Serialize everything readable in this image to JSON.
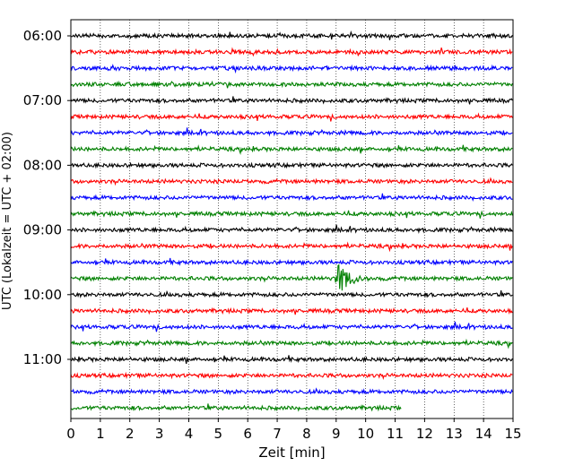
{
  "chart_data": {
    "type": "line",
    "title": "",
    "xlabel": "Zeit  [min]",
    "ylabel": "UTC (Lokalzeit = UTC + 02:00)",
    "xlim": [
      0,
      15
    ],
    "x_ticks": [
      "0",
      "1",
      "2",
      "3",
      "4",
      "5",
      "6",
      "7",
      "8",
      "9",
      "10",
      "11",
      "12",
      "13",
      "14",
      "15"
    ],
    "y_ticks": [
      "06:00",
      "07:00",
      "08:00",
      "09:00",
      "10:00",
      "11:00"
    ],
    "grid": "vertical dotted",
    "trace_interval_minutes": 15,
    "colors_cycle": [
      "#000000",
      "#ff0000",
      "#0000ff",
      "#008000"
    ],
    "series": [
      {
        "start": "06:00",
        "color": "#000000",
        "end_min": 15
      },
      {
        "start": "06:15",
        "color": "#ff0000",
        "end_min": 15
      },
      {
        "start": "06:30",
        "color": "#0000ff",
        "end_min": 15
      },
      {
        "start": "06:45",
        "color": "#008000",
        "end_min": 15
      },
      {
        "start": "07:00",
        "color": "#000000",
        "end_min": 15
      },
      {
        "start": "07:15",
        "color": "#ff0000",
        "end_min": 15
      },
      {
        "start": "07:30",
        "color": "#0000ff",
        "end_min": 15
      },
      {
        "start": "07:45",
        "color": "#008000",
        "end_min": 15
      },
      {
        "start": "08:00",
        "color": "#000000",
        "end_min": 15
      },
      {
        "start": "08:15",
        "color": "#ff0000",
        "end_min": 15
      },
      {
        "start": "08:30",
        "color": "#0000ff",
        "end_min": 15
      },
      {
        "start": "08:45",
        "color": "#008000",
        "end_min": 15
      },
      {
        "start": "09:00",
        "color": "#000000",
        "end_min": 15
      },
      {
        "start": "09:15",
        "color": "#ff0000",
        "end_min": 15
      },
      {
        "start": "09:30",
        "color": "#0000ff",
        "end_min": 15
      },
      {
        "start": "09:45",
        "color": "#008000",
        "end_min": 15,
        "event": {
          "onset_min": 8.95,
          "peak_min": 9.1,
          "decay_end_min": 10.5
        }
      },
      {
        "start": "10:00",
        "color": "#000000",
        "end_min": 15
      },
      {
        "start": "10:15",
        "color": "#ff0000",
        "end_min": 15
      },
      {
        "start": "10:30",
        "color": "#0000ff",
        "end_min": 15
      },
      {
        "start": "10:45",
        "color": "#008000",
        "end_min": 15
      },
      {
        "start": "11:00",
        "color": "#000000",
        "end_min": 15
      },
      {
        "start": "11:15",
        "color": "#ff0000",
        "end_min": 15
      },
      {
        "start": "11:30",
        "color": "#0000ff",
        "end_min": 15
      },
      {
        "start": "11:45",
        "color": "#008000",
        "end_min": 11.2
      }
    ]
  }
}
